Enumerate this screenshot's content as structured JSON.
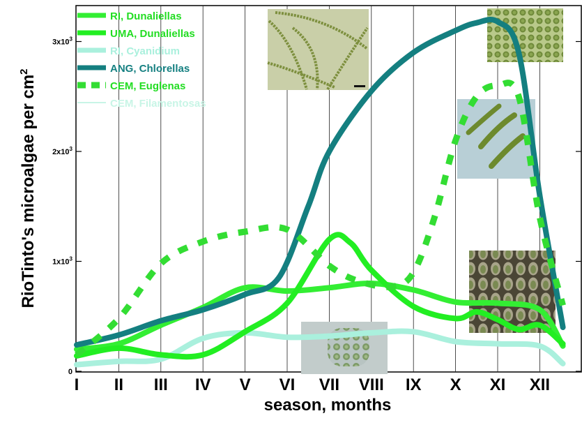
{
  "chart_data": {
    "type": "line",
    "xlabel": "season, months",
    "ylabel": "RioTinto's microalgae per cm",
    "ylabel_superscript": "2",
    "categories": [
      "I",
      "II",
      "III",
      "IV",
      "V",
      "VI",
      "VII",
      "VIII",
      "IX",
      "X",
      "XI",
      "XII"
    ],
    "x": [
      1,
      2,
      3,
      4,
      5,
      6,
      7,
      8,
      9,
      10,
      11,
      12
    ],
    "ylim": [
      0,
      3200
    ],
    "yticks": [
      {
        "value": 0,
        "label": "0"
      },
      {
        "value": 1000,
        "label": "1x10",
        "exp": "3"
      },
      {
        "value": 2000,
        "label": "2x10",
        "exp": "3"
      },
      {
        "value": 3000,
        "label": "3x10",
        "exp": "3"
      }
    ],
    "grid": "vertical",
    "legend": "top-left",
    "series": [
      {
        "name": "RI, Dunaliellas",
        "color": "#33ee33",
        "style": "solid",
        "x": [
          1,
          2,
          3,
          4,
          5,
          6,
          7,
          8,
          9,
          10,
          11,
          12,
          12.55
        ],
        "y": [
          200,
          250,
          420,
          580,
          760,
          730,
          760,
          800,
          740,
          630,
          620,
          560,
          230
        ]
      },
      {
        "name": "UMA, Dunaliellas",
        "color": "#22ee22",
        "style": "solid",
        "x": [
          1,
          2,
          3,
          4,
          5,
          6,
          7,
          7.5,
          8,
          9,
          10,
          10.5,
          11,
          11.5,
          12,
          12.55
        ],
        "y": [
          140,
          210,
          150,
          150,
          360,
          620,
          1200,
          1170,
          920,
          590,
          480,
          540,
          470,
          380,
          420,
          250
        ]
      },
      {
        "name": "RI, Cyanidium",
        "color": "#aaf0dd",
        "style": "solid",
        "x": [
          1,
          2,
          3,
          4,
          5,
          6,
          7,
          8,
          9,
          10,
          11,
          12,
          12.55
        ],
        "y": [
          60,
          90,
          110,
          300,
          350,
          310,
          320,
          350,
          360,
          270,
          250,
          230,
          70
        ]
      },
      {
        "name": "ANG, Chlorellas",
        "color": "#147f80",
        "style": "solid",
        "x": [
          1,
          2,
          3,
          4,
          5,
          5.8,
          6.5,
          7,
          8,
          9,
          10,
          10.5,
          11,
          11.5,
          12,
          12.55
        ],
        "y": [
          240,
          330,
          460,
          560,
          700,
          850,
          1500,
          2000,
          2550,
          2900,
          3100,
          3170,
          3180,
          2900,
          1600,
          400
        ]
      },
      {
        "name": "CEM, Euglenas",
        "color": "#33dd33",
        "style": "dashed",
        "x": [
          1,
          2,
          3,
          4,
          5,
          6,
          7,
          7.7,
          8.5,
          9,
          9.5,
          10,
          10.5,
          11,
          11.5,
          12,
          12.55
        ],
        "y": [
          150,
          480,
          980,
          1180,
          1270,
          1290,
          960,
          820,
          770,
          900,
          1400,
          2100,
          2500,
          2600,
          2500,
          1400,
          600
        ]
      },
      {
        "name": "CEM, Filamentosas",
        "color": "#c8f5e6",
        "style": "solid",
        "x": [],
        "y": []
      }
    ]
  },
  "photos": [
    {
      "name": "filaments-photo"
    },
    {
      "name": "chlorella-cells-photo"
    },
    {
      "name": "euglena-photo"
    },
    {
      "name": "dunaliella-cells-photo"
    },
    {
      "name": "cyanidium-cells-photo"
    }
  ]
}
